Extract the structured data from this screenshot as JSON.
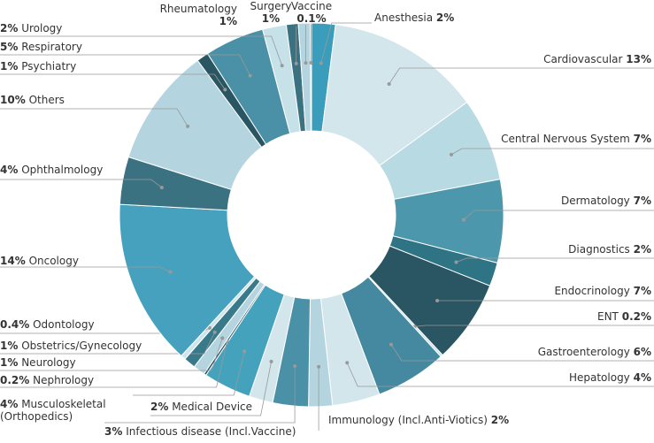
{
  "chart_data": {
    "type": "donut",
    "categories": [
      "Anesthesia",
      "Cardiovascular",
      "Central Nervous System",
      "Dermatology",
      "Diagnostics",
      "Endocrinology",
      "ENT",
      "Gastroenterology",
      "Hepatology",
      "Immunology (Incl.Anti-Viotics)",
      "Infectious disease (Incl.Vaccine)",
      "Medical Device",
      "Musculoskeletal\n(Orthopedics)",
      "Nephrology",
      "Neurology",
      "Obstetrics/Gynecology",
      "Odontology",
      "Oncology",
      "Ophthalmology",
      "Others",
      "Psychiatry",
      "Respiratory",
      "Urology",
      "Rheumatology",
      "Surgery",
      "Vaccine"
    ],
    "values": [
      2,
      13,
      7,
      7,
      2,
      7,
      0.2,
      6,
      4,
      2,
      3,
      2,
      4,
      0.2,
      1,
      1,
      0.4,
      14,
      4,
      10,
      1,
      5,
      2,
      1,
      1,
      0.1
    ],
    "value_labels": [
      "2%",
      "13%",
      "7%",
      "7%",
      "2%",
      "7%",
      "0.2%",
      "6%",
      "4%",
      "2%",
      "3%",
      "2%",
      "4%",
      "0.2%",
      "1%",
      "1%",
      "0.4%",
      "14%",
      "4%",
      "10%",
      "1%",
      "5%",
      "2%",
      "1%",
      "1%",
      "0.1%"
    ],
    "colors": [
      "#3a9dbb",
      "#d3e6ec",
      "#b8dae3",
      "#4d97ad",
      "#2f7484",
      "#2a5563",
      "#c7e1e8",
      "#4589a0",
      "#d3e6ec",
      "#b4d5df",
      "#4a90a6",
      "#d3e6ec",
      "#44a2bd",
      "#2a5563",
      "#b4d5df",
      "#397a8a",
      "#cfe5eb",
      "#45a1bd",
      "#3b7282",
      "#b4d5df",
      "#2a5563",
      "#4a90a6",
      "#c7e1e8",
      "#3b7282",
      "#b4d5df",
      "#2a5563"
    ]
  }
}
